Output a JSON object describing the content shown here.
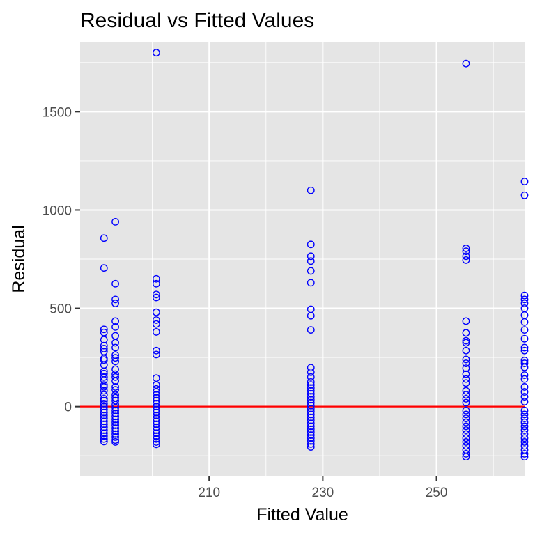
{
  "chart_data": {
    "type": "scatter",
    "title": "Residual vs Fitted Values",
    "xlabel": "Fitted Value",
    "ylabel": "Residual",
    "xlim": [
      187.3,
      265.5
    ],
    "ylim": [
      -352,
      1852
    ],
    "x_ticks": [
      210,
      230,
      250
    ],
    "y_ticks": [
      0,
      500,
      1000,
      1500
    ],
    "x_minor_ticks": [
      200,
      220,
      240,
      260
    ],
    "y_minor_ticks": [
      -250,
      250,
      750,
      1250,
      1750
    ],
    "grid": true,
    "legend": "none",
    "reference_line": {
      "y": 0,
      "color": "#ff0000"
    },
    "colors": {
      "points": "#0000ff",
      "panel": "#e5e5e5",
      "grid": "#ffffff",
      "reference": "#ff0000"
    },
    "series": [
      {
        "points": [
          {
            "x": 191.5,
            "y": 857
          },
          {
            "x": 191.5,
            "y": 705
          },
          {
            "x": 191.5,
            "y": 393
          },
          {
            "x": 191.5,
            "y": 377
          },
          {
            "x": 191.5,
            "y": 340
          },
          {
            "x": 191.5,
            "y": 310
          },
          {
            "x": 191.5,
            "y": 295
          },
          {
            "x": 191.5,
            "y": 280
          },
          {
            "x": 191.5,
            "y": 245
          },
          {
            "x": 191.5,
            "y": 237
          },
          {
            "x": 191.5,
            "y": 212
          },
          {
            "x": 191.5,
            "y": 180
          },
          {
            "x": 191.5,
            "y": 168
          },
          {
            "x": 191.5,
            "y": 150
          },
          {
            "x": 191.5,
            "y": 135
          },
          {
            "x": 191.5,
            "y": 110
          },
          {
            "x": 191.5,
            "y": 100
          },
          {
            "x": 191.5,
            "y": 80
          },
          {
            "x": 191.5,
            "y": 60
          },
          {
            "x": 191.5,
            "y": 40
          },
          {
            "x": 191.5,
            "y": 30
          },
          {
            "x": 191.5,
            "y": 15
          },
          {
            "x": 191.5,
            "y": 0
          },
          {
            "x": 191.5,
            "y": -15
          },
          {
            "x": 191.5,
            "y": -30
          },
          {
            "x": 191.5,
            "y": -45
          },
          {
            "x": 191.5,
            "y": -60
          },
          {
            "x": 191.5,
            "y": -75
          },
          {
            "x": 191.5,
            "y": -90
          },
          {
            "x": 191.5,
            "y": -105
          },
          {
            "x": 191.5,
            "y": -120
          },
          {
            "x": 191.5,
            "y": -135
          },
          {
            "x": 191.5,
            "y": -150
          },
          {
            "x": 191.5,
            "y": -165
          },
          {
            "x": 191.5,
            "y": -178
          },
          {
            "x": 193.5,
            "y": 940
          },
          {
            "x": 193.5,
            "y": 625
          },
          {
            "x": 193.5,
            "y": 545
          },
          {
            "x": 193.5,
            "y": 525
          },
          {
            "x": 193.5,
            "y": 435
          },
          {
            "x": 193.5,
            "y": 405
          },
          {
            "x": 193.5,
            "y": 360
          },
          {
            "x": 193.5,
            "y": 325
          },
          {
            "x": 193.5,
            "y": 300
          },
          {
            "x": 193.5,
            "y": 262
          },
          {
            "x": 193.5,
            "y": 248
          },
          {
            "x": 193.5,
            "y": 230
          },
          {
            "x": 193.5,
            "y": 190
          },
          {
            "x": 193.5,
            "y": 165
          },
          {
            "x": 193.5,
            "y": 150
          },
          {
            "x": 193.5,
            "y": 130
          },
          {
            "x": 193.5,
            "y": 100
          },
          {
            "x": 193.5,
            "y": 85
          },
          {
            "x": 193.5,
            "y": 60
          },
          {
            "x": 193.5,
            "y": 45
          },
          {
            "x": 193.5,
            "y": 30
          },
          {
            "x": 193.5,
            "y": 10
          },
          {
            "x": 193.5,
            "y": -5
          },
          {
            "x": 193.5,
            "y": -20
          },
          {
            "x": 193.5,
            "y": -35
          },
          {
            "x": 193.5,
            "y": -50
          },
          {
            "x": 193.5,
            "y": -65
          },
          {
            "x": 193.5,
            "y": -80
          },
          {
            "x": 193.5,
            "y": -95
          },
          {
            "x": 193.5,
            "y": -110
          },
          {
            "x": 193.5,
            "y": -125
          },
          {
            "x": 193.5,
            "y": -140
          },
          {
            "x": 193.5,
            "y": -155
          },
          {
            "x": 193.5,
            "y": -170
          },
          {
            "x": 193.5,
            "y": -180
          },
          {
            "x": 200.7,
            "y": 1800
          },
          {
            "x": 200.7,
            "y": 650
          },
          {
            "x": 200.7,
            "y": 625
          },
          {
            "x": 200.7,
            "y": 570
          },
          {
            "x": 200.7,
            "y": 555
          },
          {
            "x": 200.7,
            "y": 480
          },
          {
            "x": 200.7,
            "y": 440
          },
          {
            "x": 200.7,
            "y": 420
          },
          {
            "x": 200.7,
            "y": 380
          },
          {
            "x": 200.7,
            "y": 285
          },
          {
            "x": 200.7,
            "y": 265
          },
          {
            "x": 200.7,
            "y": 145
          },
          {
            "x": 200.7,
            "y": 110
          },
          {
            "x": 200.7,
            "y": 90
          },
          {
            "x": 200.7,
            "y": 75
          },
          {
            "x": 200.7,
            "y": 60
          },
          {
            "x": 200.7,
            "y": 45
          },
          {
            "x": 200.7,
            "y": 30
          },
          {
            "x": 200.7,
            "y": 15
          },
          {
            "x": 200.7,
            "y": 0
          },
          {
            "x": 200.7,
            "y": -15
          },
          {
            "x": 200.7,
            "y": -30
          },
          {
            "x": 200.7,
            "y": -45
          },
          {
            "x": 200.7,
            "y": -60
          },
          {
            "x": 200.7,
            "y": -75
          },
          {
            "x": 200.7,
            "y": -90
          },
          {
            "x": 200.7,
            "y": -105
          },
          {
            "x": 200.7,
            "y": -120
          },
          {
            "x": 200.7,
            "y": -135
          },
          {
            "x": 200.7,
            "y": -150
          },
          {
            "x": 200.7,
            "y": -165
          },
          {
            "x": 200.7,
            "y": -180
          },
          {
            "x": 200.7,
            "y": -192
          },
          {
            "x": 227.9,
            "y": 1100
          },
          {
            "x": 227.9,
            "y": 825
          },
          {
            "x": 227.9,
            "y": 765
          },
          {
            "x": 227.9,
            "y": 740
          },
          {
            "x": 227.9,
            "y": 690
          },
          {
            "x": 227.9,
            "y": 630
          },
          {
            "x": 227.9,
            "y": 495
          },
          {
            "x": 227.9,
            "y": 462
          },
          {
            "x": 227.9,
            "y": 390
          },
          {
            "x": 227.9,
            "y": 198
          },
          {
            "x": 227.9,
            "y": 175
          },
          {
            "x": 227.9,
            "y": 150
          },
          {
            "x": 227.9,
            "y": 125
          },
          {
            "x": 227.9,
            "y": 110
          },
          {
            "x": 227.9,
            "y": 95
          },
          {
            "x": 227.9,
            "y": 80
          },
          {
            "x": 227.9,
            "y": 65
          },
          {
            "x": 227.9,
            "y": 50
          },
          {
            "x": 227.9,
            "y": 35
          },
          {
            "x": 227.9,
            "y": 20
          },
          {
            "x": 227.9,
            "y": 5
          },
          {
            "x": 227.9,
            "y": -10
          },
          {
            "x": 227.9,
            "y": -25
          },
          {
            "x": 227.9,
            "y": -40
          },
          {
            "x": 227.9,
            "y": -55
          },
          {
            "x": 227.9,
            "y": -70
          },
          {
            "x": 227.9,
            "y": -85
          },
          {
            "x": 227.9,
            "y": -100
          },
          {
            "x": 227.9,
            "y": -115
          },
          {
            "x": 227.9,
            "y": -130
          },
          {
            "x": 227.9,
            "y": -145
          },
          {
            "x": 227.9,
            "y": -160
          },
          {
            "x": 227.9,
            "y": -175
          },
          {
            "x": 227.9,
            "y": -190
          },
          {
            "x": 227.9,
            "y": -205
          },
          {
            "x": 255.2,
            "y": 1745
          },
          {
            "x": 255.2,
            "y": 805
          },
          {
            "x": 255.2,
            "y": 790
          },
          {
            "x": 255.2,
            "y": 765
          },
          {
            "x": 255.2,
            "y": 745
          },
          {
            "x": 255.2,
            "y": 435
          },
          {
            "x": 255.2,
            "y": 375
          },
          {
            "x": 255.2,
            "y": 335
          },
          {
            "x": 255.2,
            "y": 325
          },
          {
            "x": 255.2,
            "y": 285
          },
          {
            "x": 255.2,
            "y": 240
          },
          {
            "x": 255.2,
            "y": 220
          },
          {
            "x": 255.2,
            "y": 195
          },
          {
            "x": 255.2,
            "y": 165
          },
          {
            "x": 255.2,
            "y": 140
          },
          {
            "x": 255.2,
            "y": 120
          },
          {
            "x": 255.2,
            "y": 80
          },
          {
            "x": 255.2,
            "y": 60
          },
          {
            "x": 255.2,
            "y": 40
          },
          {
            "x": 255.2,
            "y": 20
          },
          {
            "x": 255.2,
            "y": -20
          },
          {
            "x": 255.2,
            "y": -40
          },
          {
            "x": 255.2,
            "y": -60
          },
          {
            "x": 255.2,
            "y": -80
          },
          {
            "x": 255.2,
            "y": -100
          },
          {
            "x": 255.2,
            "y": -120
          },
          {
            "x": 255.2,
            "y": -140
          },
          {
            "x": 255.2,
            "y": -160
          },
          {
            "x": 255.2,
            "y": -180
          },
          {
            "x": 255.2,
            "y": -200
          },
          {
            "x": 255.2,
            "y": -220
          },
          {
            "x": 255.2,
            "y": -240
          },
          {
            "x": 255.2,
            "y": -255
          },
          {
            "x": 265.5,
            "y": 1145
          },
          {
            "x": 265.5,
            "y": 1075
          },
          {
            "x": 265.5,
            "y": 565
          },
          {
            "x": 265.5,
            "y": 545
          },
          {
            "x": 265.5,
            "y": 525
          },
          {
            "x": 265.5,
            "y": 500
          },
          {
            "x": 265.5,
            "y": 465
          },
          {
            "x": 265.5,
            "y": 430
          },
          {
            "x": 265.5,
            "y": 390
          },
          {
            "x": 265.5,
            "y": 345
          },
          {
            "x": 265.5,
            "y": 300
          },
          {
            "x": 265.5,
            "y": 285
          },
          {
            "x": 265.5,
            "y": 235
          },
          {
            "x": 265.5,
            "y": 220
          },
          {
            "x": 265.5,
            "y": 200
          },
          {
            "x": 265.5,
            "y": 160
          },
          {
            "x": 265.5,
            "y": 140
          },
          {
            "x": 265.5,
            "y": 100
          },
          {
            "x": 265.5,
            "y": 75
          },
          {
            "x": 265.5,
            "y": 50
          },
          {
            "x": 265.5,
            "y": 25
          },
          {
            "x": 265.5,
            "y": -20
          },
          {
            "x": 265.5,
            "y": -40
          },
          {
            "x": 265.5,
            "y": -60
          },
          {
            "x": 265.5,
            "y": -80
          },
          {
            "x": 265.5,
            "y": -100
          },
          {
            "x": 265.5,
            "y": -120
          },
          {
            "x": 265.5,
            "y": -140
          },
          {
            "x": 265.5,
            "y": -160
          },
          {
            "x": 265.5,
            "y": -180
          },
          {
            "x": 265.5,
            "y": -200
          },
          {
            "x": 265.5,
            "y": -220
          },
          {
            "x": 265.5,
            "y": -240
          },
          {
            "x": 265.5,
            "y": -255
          }
        ]
      }
    ]
  }
}
